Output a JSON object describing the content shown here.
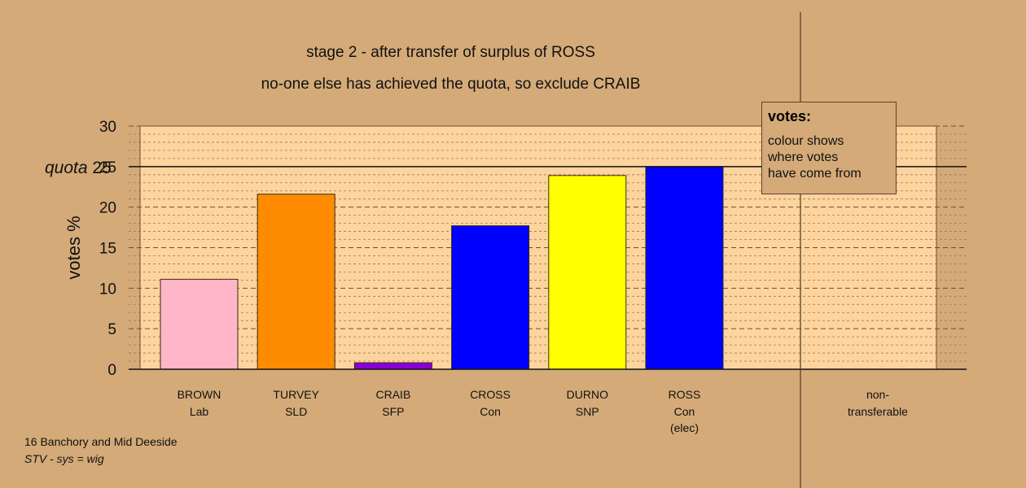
{
  "title_line1": "stage 2 - after transfer of surplus of ROSS",
  "title_line2": "no-one else has achieved the quota, so exclude CRAIB",
  "footer_line1": "16 Banchory and Mid Deeside",
  "footer_line2": "STV - sys = wig",
  "legend": {
    "title": "votes:",
    "text": "colour shows\nwhere votes\nhave come from"
  },
  "colors": {
    "background": "#d4aa78",
    "plot_area": "#fdd49e"
  },
  "chart_data": {
    "type": "bar",
    "ylabel": "votes %",
    "ylim": [
      0,
      30
    ],
    "yticks": [
      0,
      5,
      10,
      15,
      20,
      25,
      30
    ],
    "quota": {
      "label": "quota",
      "value": 25
    },
    "grid": true,
    "categories": [
      {
        "name": "BROWN",
        "party": "Lab",
        "value": 11.1,
        "color": "#ffb6c8"
      },
      {
        "name": "TURVEY",
        "party": "SLD",
        "value": 21.6,
        "color": "#ff8c00"
      },
      {
        "name": "CRAIB",
        "party": "SFP",
        "value": 0.8,
        "color": "#8a00d8"
      },
      {
        "name": "CROSS",
        "party": "Con",
        "value": 17.7,
        "color": "#0000ff"
      },
      {
        "name": "DURNO",
        "party": "SNP",
        "value": 23.9,
        "color": "#ffff00"
      },
      {
        "name": "ROSS",
        "party": "Con",
        "note": "(elec)",
        "value": 25.0,
        "color": "#0000ff"
      }
    ],
    "nontransferable": {
      "label_line1": "non-",
      "label_line2": "transferable",
      "value": 0
    }
  }
}
